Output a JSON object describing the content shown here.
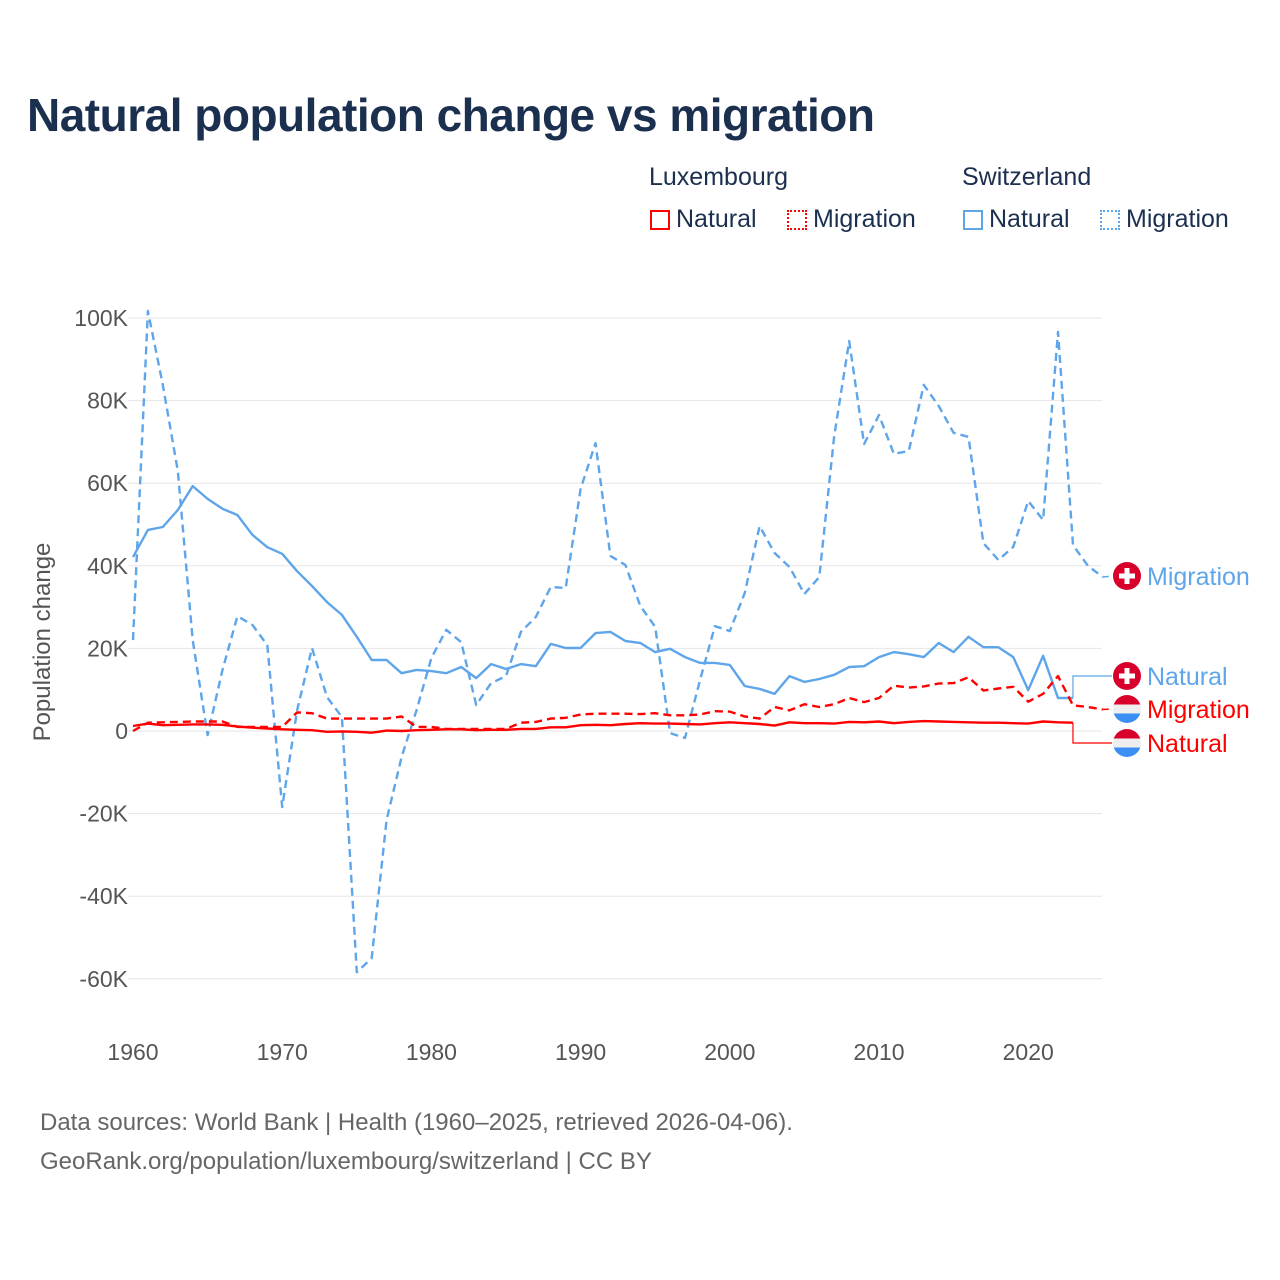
{
  "chart_data": {
    "type": "line",
    "title": "Natural population change vs migration",
    "ylabel": "Population change",
    "xlabel": "",
    "ylim": [
      -70000,
      100000
    ],
    "xlim": [
      1960,
      2025
    ],
    "yticks": [
      {
        "v": 100000,
        "label": "100K"
      },
      {
        "v": 80000,
        "label": "80K"
      },
      {
        "v": 60000,
        "label": "60K"
      },
      {
        "v": 40000,
        "label": "40K"
      },
      {
        "v": 20000,
        "label": "20K"
      },
      {
        "v": 0,
        "label": "0"
      },
      {
        "v": -20000,
        "label": "-20K"
      },
      {
        "v": -40000,
        "label": "-40K"
      },
      {
        "v": -60000,
        "label": "-60K"
      }
    ],
    "xticks": [
      {
        "v": 1960,
        "label": "1960"
      },
      {
        "v": 1970,
        "label": "1970"
      },
      {
        "v": 1980,
        "label": "1980"
      },
      {
        "v": 1990,
        "label": "1990"
      },
      {
        "v": 2000,
        "label": "2000"
      },
      {
        "v": 2010,
        "label": "2010"
      },
      {
        "v": 2020,
        "label": "2020"
      }
    ],
    "grid": true,
    "legend": {
      "placement": "top-right",
      "groups": [
        {
          "country": "Luxembourg",
          "items": [
            "Natural",
            "Migration"
          ]
        },
        {
          "country": "Switzerland",
          "items": [
            "Natural",
            "Migration"
          ]
        }
      ]
    },
    "series": [
      {
        "name": "Switzerland Migration",
        "country": "Switzerland",
        "kind": "Migration",
        "label": "Migration",
        "color": "#5ea5ea",
        "dash": true,
        "start": 1960,
        "values": [
          22000,
          101700,
          83800,
          63000,
          22000,
          -1000,
          14800,
          27800,
          25700,
          20800,
          -18400,
          5000,
          20100,
          8200,
          3400,
          -58400,
          -55000,
          -21500,
          -6300,
          5000,
          17700,
          24500,
          21500,
          6300,
          11600,
          13300,
          24000,
          27600,
          34900,
          34600,
          58600,
          69700,
          42400,
          40200,
          30300,
          25200,
          -500,
          -1700,
          12300,
          25400,
          24200,
          33400,
          49600,
          43100,
          39700,
          33200,
          37300,
          71400,
          94400,
          69500,
          76500,
          67100,
          67800,
          83800,
          78700,
          72200,
          71200,
          45500,
          41400,
          44600,
          55700,
          51100,
          96600,
          45000,
          40000,
          37300
        ]
      },
      {
        "name": "Switzerland Natural",
        "country": "Switzerland",
        "kind": "Natural",
        "label": "Natural",
        "color": "#5ea5ea",
        "dash": false,
        "start": 1960,
        "values": [
          42100,
          48700,
          49400,
          53500,
          59300,
          56200,
          53800,
          52300,
          47500,
          44500,
          42900,
          38700,
          35100,
          31200,
          28100,
          22800,
          17200,
          17200,
          14000,
          14800,
          14500,
          14000,
          15500,
          12800,
          16200,
          15000,
          16200,
          15700,
          21100,
          20100,
          20100,
          23700,
          24000,
          21800,
          21300,
          19100,
          19900,
          17900,
          16500,
          16500,
          16000,
          10900,
          10200,
          9000,
          13300,
          11900,
          12600,
          13600,
          15500,
          15700,
          17900,
          19100,
          18600,
          17900,
          21300,
          19100,
          22800,
          20300,
          20300,
          17900,
          9900,
          18200,
          8000,
          8000
        ]
      },
      {
        "name": "Luxembourg Migration",
        "country": "Luxembourg",
        "kind": "Migration",
        "label": "Migration",
        "color": "#ff0000",
        "dash": true,
        "start": 1960,
        "values": [
          0,
          2000,
          2100,
          2200,
          2300,
          2300,
          2300,
          1000,
          1000,
          1000,
          1000,
          4500,
          4300,
          3000,
          3000,
          3000,
          3000,
          3000,
          3500,
          1000,
          1000,
          500,
          500,
          500,
          500,
          500,
          2000,
          2200,
          3000,
          3200,
          4000,
          4200,
          4200,
          4200,
          4100,
          4300,
          3800,
          3800,
          4000,
          4800,
          4700,
          3500,
          3000,
          5800,
          5000,
          6500,
          5800,
          6500,
          8000,
          7000,
          8000,
          11000,
          10500,
          10800,
          11500,
          11600,
          13000,
          9800,
          10300,
          10700,
          7100,
          9000,
          13300,
          6200,
          5800,
          5200
        ]
      },
      {
        "name": "Luxembourg Natural",
        "country": "Luxembourg",
        "kind": "Natural",
        "label": "Natural",
        "color": "#ff0000",
        "dash": false,
        "start": 1960,
        "values": [
          1200,
          1800,
          1400,
          1500,
          1600,
          1600,
          1500,
          1100,
          800,
          600,
          400,
          300,
          200,
          -200,
          -100,
          -200,
          -400,
          100,
          0,
          200,
          300,
          400,
          400,
          200,
          300,
          300,
          500,
          500,
          900,
          900,
          1400,
          1500,
          1400,
          1700,
          1900,
          1800,
          1800,
          1700,
          1600,
          1900,
          2100,
          1900,
          1700,
          1300,
          2100,
          1900,
          1900,
          1800,
          2200,
          2100,
          2300,
          1900,
          2200,
          2400,
          2300,
          2200,
          2100,
          2000,
          2000,
          1900,
          1800,
          2300,
          2100,
          2000
        ]
      }
    ]
  },
  "footer": {
    "line1": "Data sources: World Bank | Health (1960–2025, retrieved 2026-04-06).",
    "line2": "GeoRank.org/population/luxembourg/switzerland | CC BY"
  },
  "colors": {
    "title": "#1b2f4e",
    "switzerland": "#5ea5ea",
    "luxembourg": "#ff0000",
    "swiss_flag_red": "#d8002b",
    "lux_flag_blue": "#3b8ff3"
  }
}
